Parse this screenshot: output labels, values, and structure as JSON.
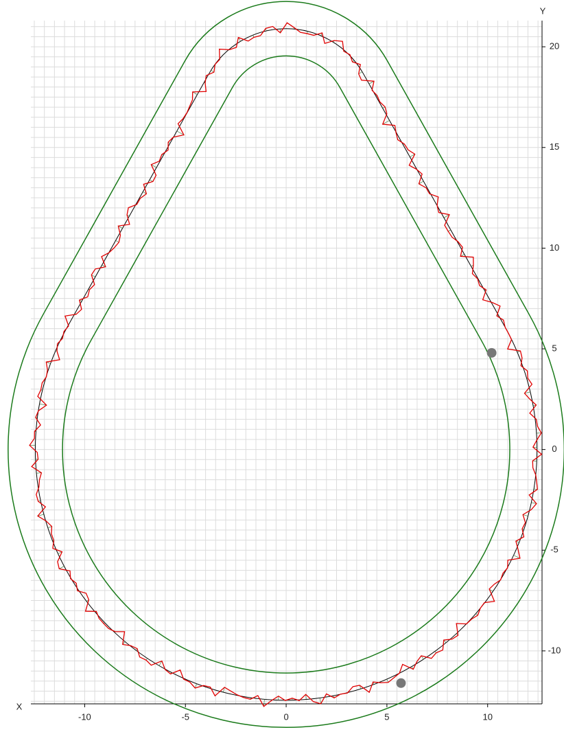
{
  "chart_data": {
    "type": "track",
    "x_label": "X",
    "y_label": "Y",
    "xlim": [
      -12.67,
      12.7
    ],
    "ylim": [
      -12.63,
      21.3
    ],
    "xticks": [
      -10,
      -5,
      0,
      5,
      10
    ],
    "yticks": [
      -10,
      -5,
      0,
      5,
      10,
      15,
      20
    ],
    "grid": true,
    "grid_step": 0.5,
    "track": {
      "bottom_radius": 12.45,
      "top_center_y": 16.5,
      "top_radius": 4.4,
      "half_width": 1.35
    },
    "markers": {
      "x": [
        10.2,
        5.7
      ],
      "y": [
        4.8,
        -11.6
      ],
      "color": "#777777"
    },
    "centerline_color": "#000000",
    "border_color": "#1a7a1a",
    "path_color": "#e00000"
  }
}
